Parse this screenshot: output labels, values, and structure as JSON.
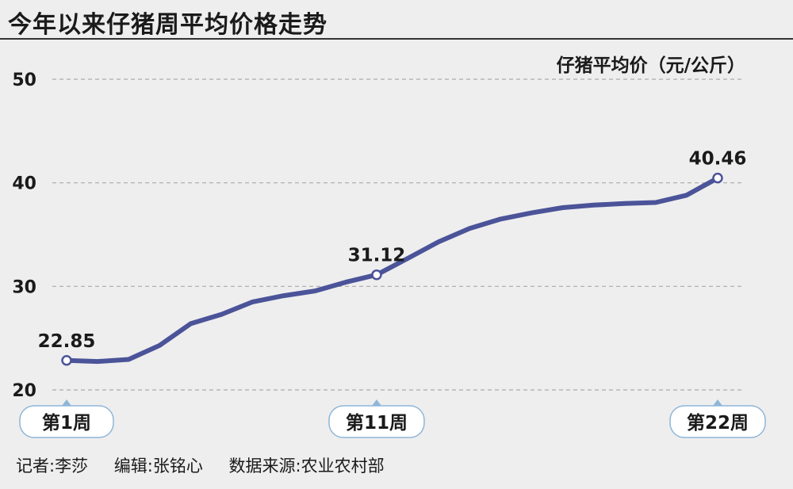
{
  "title": "今年以来仔猪周平均价格走势",
  "credits": {
    "reporter": "记者:李莎",
    "editor": "编辑:张铭心",
    "source": "数据来源:农业农村部"
  },
  "colors": {
    "line": "#4b5399",
    "grid": "#aaaaaa",
    "tag_border": "#8fb6d8",
    "background": "#eeeeee"
  },
  "chart_data": {
    "type": "line",
    "title": "今年以来仔猪周平均价格走势",
    "ylabel": "仔猪平均价（元/公斤）",
    "xlabel": "",
    "ylim": [
      20,
      50
    ],
    "yticks": [
      20,
      30,
      40,
      50
    ],
    "grid": "horizontal dashed",
    "x": [
      1,
      2,
      3,
      4,
      5,
      6,
      7,
      8,
      9,
      10,
      11,
      12,
      13,
      14,
      15,
      16,
      17,
      18,
      19,
      20,
      21,
      22
    ],
    "x_labels": [
      {
        "index": 0,
        "text": "第1周"
      },
      {
        "index": 10,
        "text": "第11周"
      },
      {
        "index": 21,
        "text": "第22周"
      }
    ],
    "series": [
      {
        "values": [
          22.85,
          22.75,
          22.95,
          24.3,
          26.4,
          27.3,
          28.5,
          29.1,
          29.55,
          30.4,
          31.12,
          32.7,
          34.3,
          35.6,
          36.5,
          37.1,
          37.6,
          37.85,
          38.0,
          38.1,
          38.8,
          40.46
        ],
        "color": "#4b5399"
      }
    ],
    "annotations": [
      {
        "index": 0,
        "text": "22.85"
      },
      {
        "index": 10,
        "text": "31.12"
      },
      {
        "index": 21,
        "text": "40.46"
      }
    ]
  }
}
